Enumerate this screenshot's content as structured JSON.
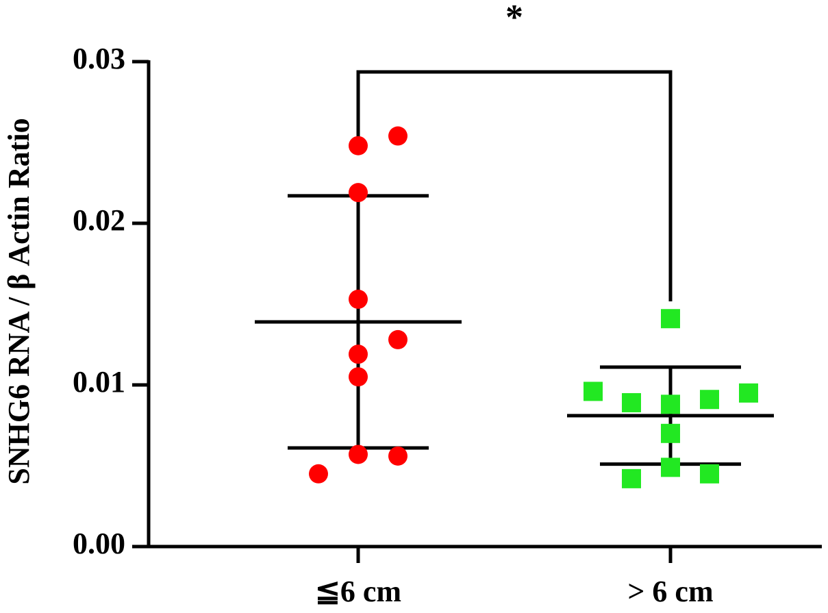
{
  "chart_data": {
    "type": "scatter",
    "y_label": "SNHG6 RNA / β Actin Ratio",
    "annotation": "*",
    "categories": [
      "≦6 cm",
      "> 6 cm"
    ],
    "series": [
      {
        "color": "#ff0000",
        "marker": "circle",
        "values": [
          0.0248,
          0.0254,
          0.0219,
          0.0153,
          0.0128,
          0.0119,
          0.0105,
          0.0057,
          0.0056,
          0.0045
        ],
        "mean": 0.0139,
        "sd": 0.0078
      },
      {
        "color": "#22e822",
        "marker": "square",
        "values": [
          0.0141,
          0.0096,
          0.0089,
          0.0088,
          0.0091,
          0.0095,
          0.007,
          0.0049,
          0.0042,
          0.0045
        ],
        "mean": 0.0081,
        "sd": 0.003
      }
    ],
    "ylim": [
      0,
      0.03
    ],
    "yticks": [
      {
        "value": 0,
        "label": "0.00"
      },
      0.01,
      0.02,
      0.03
    ]
  }
}
